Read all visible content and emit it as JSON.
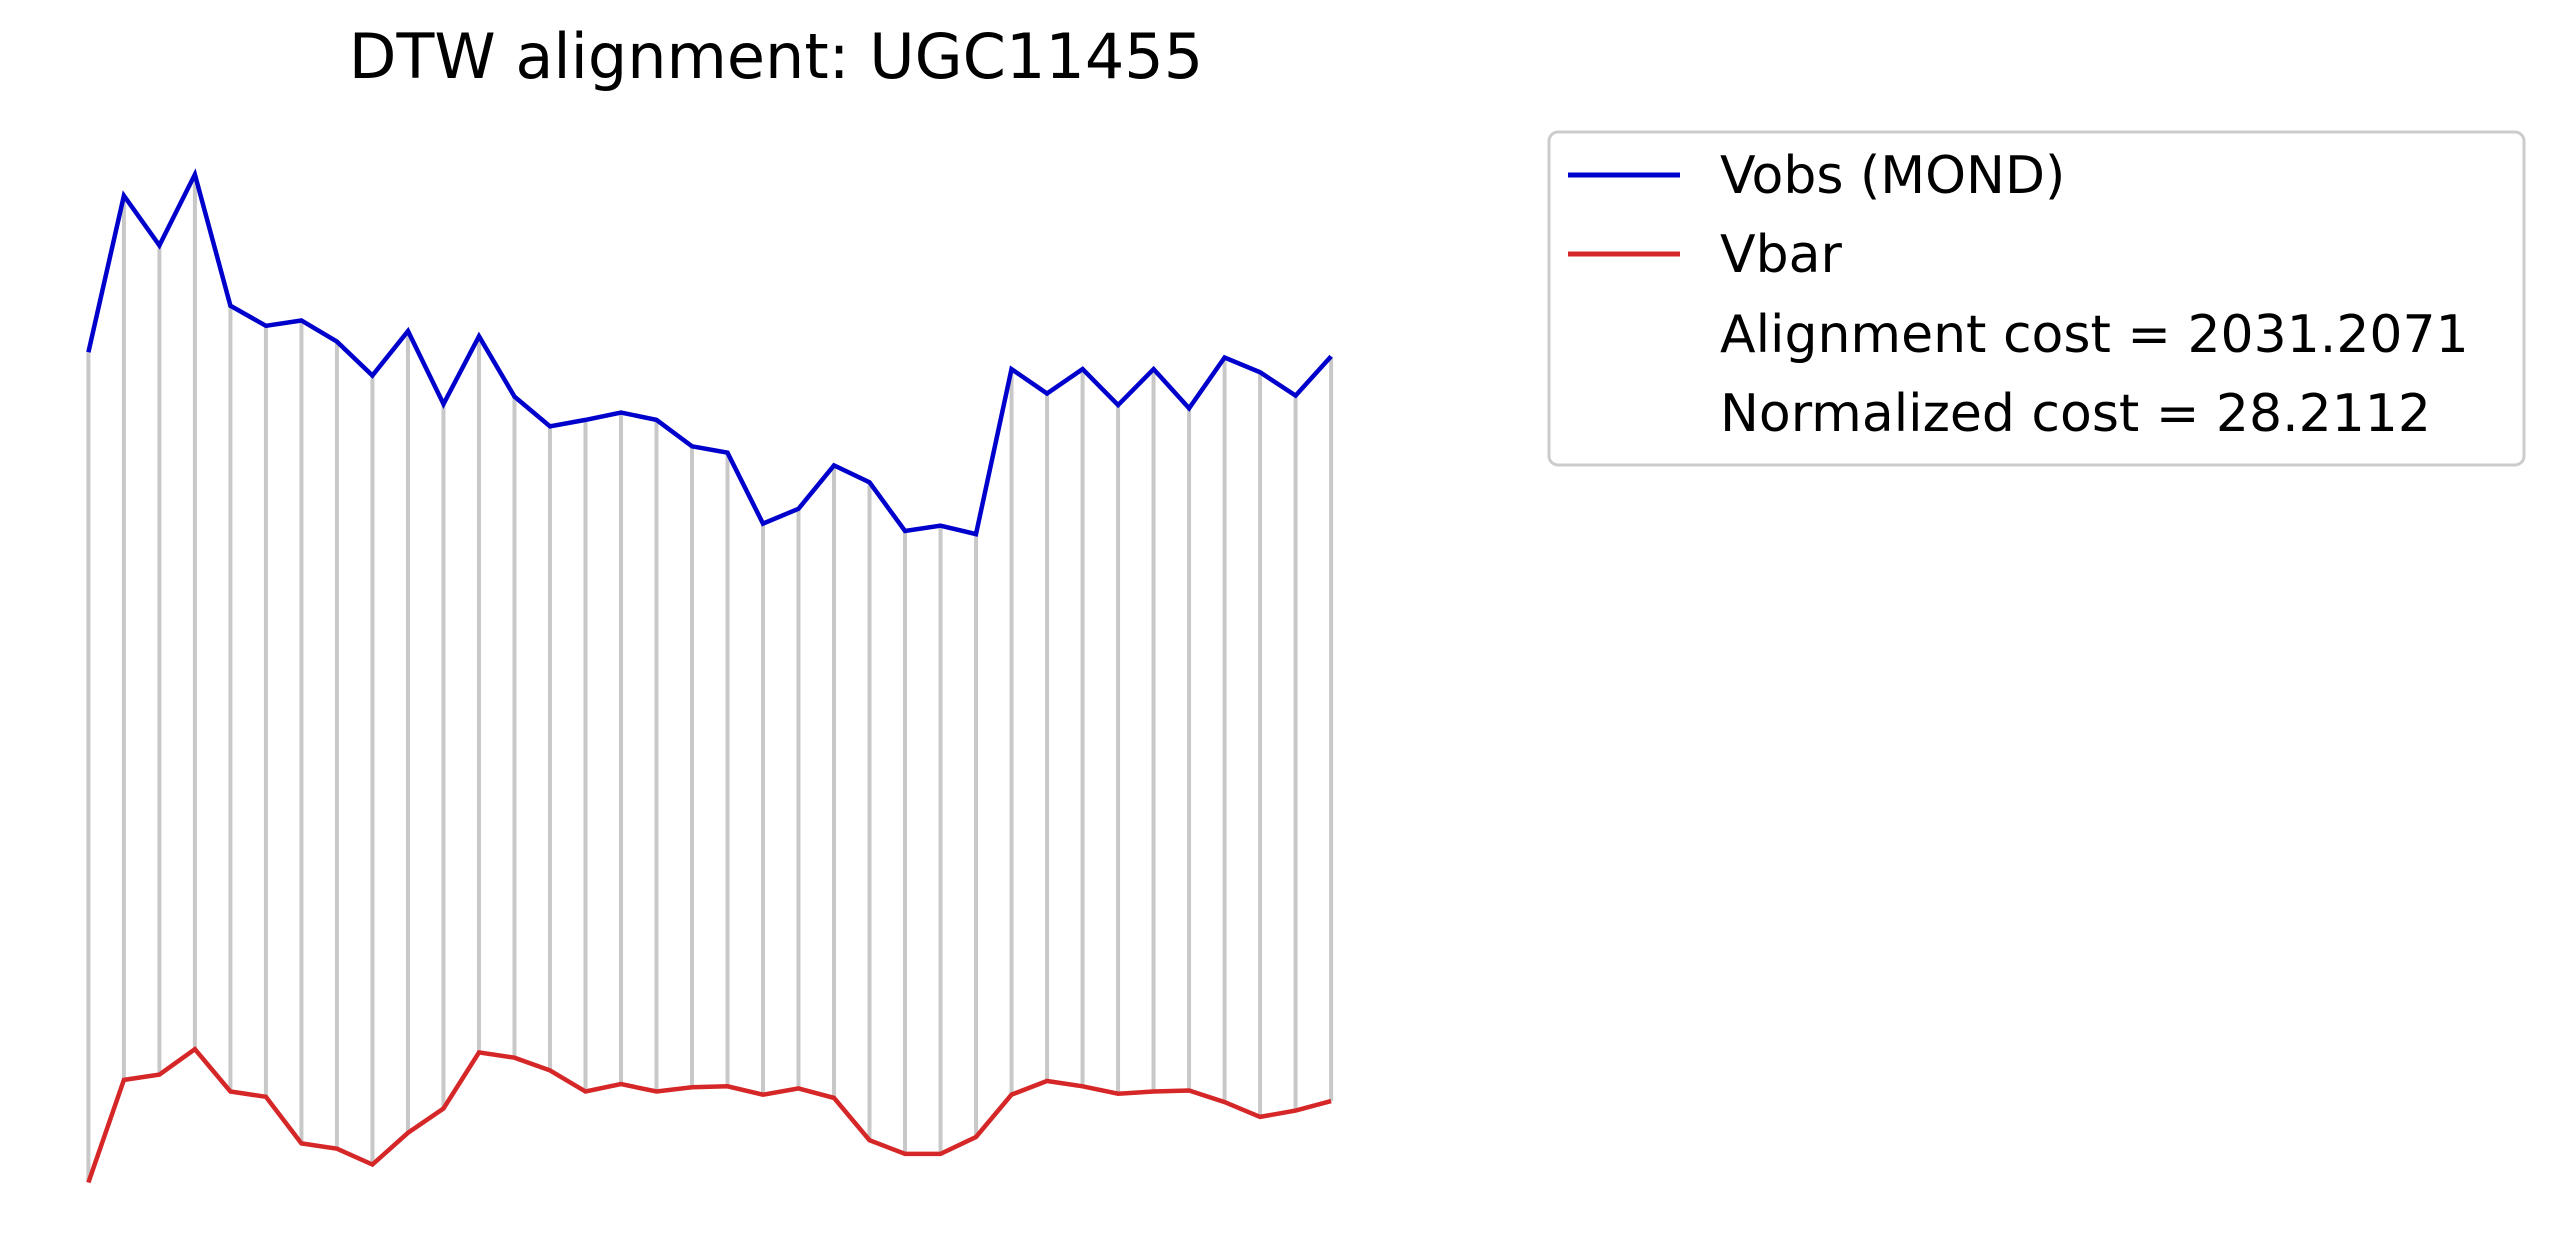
{
  "chart_data": {
    "type": "line",
    "title": "DTW alignment: UGC11455",
    "xlabel": "",
    "ylabel": "",
    "axes_visible": false,
    "grid": false,
    "legend_placement": "outside-upper-right",
    "x": [
      0,
      1,
      2,
      3,
      4,
      5,
      6,
      7,
      8,
      9,
      10,
      11,
      12,
      13,
      14,
      15,
      16,
      17,
      18,
      19,
      20,
      21,
      22,
      23,
      24,
      25,
      26,
      27,
      28,
      29,
      30,
      31,
      32,
      33,
      34,
      35
    ],
    "xlim": [
      -0.8,
      36.8
    ],
    "ylim": [
      -2,
      102
    ],
    "series": [
      {
        "name": "Vobs (MOND)",
        "color": "#0000cc",
        "values": [
          79.1,
          93.9,
          89.2,
          95.9,
          83.5,
          81.6,
          82.1,
          80.1,
          76.9,
          81.1,
          74.2,
          80.6,
          74.9,
          72.1,
          72.7,
          73.4,
          72.7,
          70.2,
          69.6,
          62.9,
          64.3,
          68.4,
          66.8,
          62.2,
          62.7,
          61.9,
          77.5,
          75.2,
          77.5,
          74.1,
          77.5,
          73.8,
          78.6,
          77.2,
          75.0,
          78.7
        ]
      },
      {
        "name": "Vbar",
        "color": "#d62728",
        "values": [
          0.6,
          10.3,
          10.8,
          13.2,
          9.2,
          8.7,
          4.3,
          3.8,
          2.3,
          5.3,
          7.6,
          12.9,
          12.4,
          11.2,
          9.2,
          9.9,
          9.2,
          9.6,
          9.7,
          8.9,
          9.5,
          8.6,
          4.6,
          3.3,
          3.3,
          4.9,
          8.9,
          10.2,
          9.7,
          9.0,
          9.2,
          9.3,
          8.2,
          6.8,
          7.4,
          8.3
        ]
      }
    ],
    "alignment_pairs": [
      [
        0,
        0
      ],
      [
        1,
        1
      ],
      [
        2,
        2
      ],
      [
        3,
        3
      ],
      [
        4,
        4
      ],
      [
        5,
        5
      ],
      [
        6,
        6
      ],
      [
        7,
        7
      ],
      [
        8,
        8
      ],
      [
        9,
        9
      ],
      [
        10,
        10
      ],
      [
        11,
        11
      ],
      [
        12,
        12
      ],
      [
        13,
        13
      ],
      [
        14,
        14
      ],
      [
        15,
        15
      ],
      [
        16,
        16
      ],
      [
        17,
        17
      ],
      [
        18,
        18
      ],
      [
        19,
        19
      ],
      [
        20,
        20
      ],
      [
        21,
        21
      ],
      [
        22,
        22
      ],
      [
        23,
        23
      ],
      [
        24,
        24
      ],
      [
        25,
        25
      ],
      [
        26,
        26
      ],
      [
        27,
        27
      ],
      [
        28,
        28
      ],
      [
        29,
        29
      ],
      [
        30,
        30
      ],
      [
        31,
        31
      ],
      [
        32,
        32
      ],
      [
        33,
        33
      ],
      [
        34,
        34
      ],
      [
        35,
        35
      ]
    ],
    "alignment_line_color": "#c8c8c8",
    "legend": {
      "entries": [
        {
          "label": "Vobs (MOND)",
          "color": "#0000cc",
          "marker": "line"
        },
        {
          "label": "Vbar",
          "color": "#d62728",
          "marker": "line"
        },
        {
          "label": "Alignment cost = 2031.2071",
          "color": "",
          "marker": "none"
        },
        {
          "label": "Normalized cost = 28.2112",
          "color": "",
          "marker": "none"
        }
      ]
    }
  }
}
